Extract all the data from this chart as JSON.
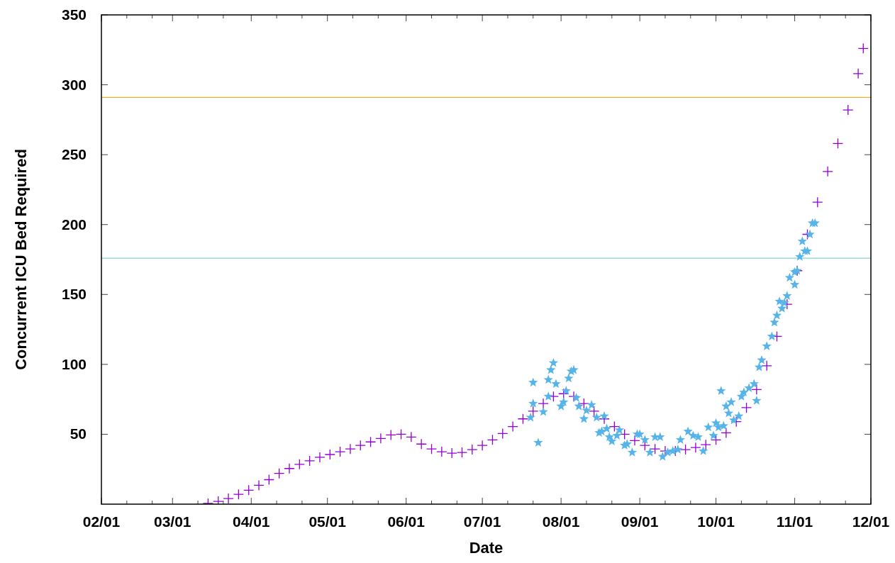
{
  "chart_data": {
    "type": "scatter",
    "xlabel": "Date",
    "ylabel": "Concurrent ICU Bed Required",
    "xlim": [
      "--02-01",
      "--12-01"
    ],
    "xticks": [
      {
        "value": "--02-01",
        "label": "02/01"
      },
      {
        "value": "--02-11",
        "label": null
      },
      {
        "value": "--02-21",
        "label": null
      },
      {
        "value": "--03-01",
        "label": "03/01"
      },
      {
        "value": "--03-11",
        "label": null
      },
      {
        "value": "--03-21",
        "label": null
      },
      {
        "value": "--04-01",
        "label": "04/01"
      },
      {
        "value": "--04-11",
        "label": null
      },
      {
        "value": "--04-21",
        "label": null
      },
      {
        "value": "--05-01",
        "label": "05/01"
      },
      {
        "value": "--05-11",
        "label": null
      },
      {
        "value": "--05-21",
        "label": null
      },
      {
        "value": "--06-01",
        "label": "06/01"
      },
      {
        "value": "--06-11",
        "label": null
      },
      {
        "value": "--06-21",
        "label": null
      },
      {
        "value": "--07-01",
        "label": "07/01"
      },
      {
        "value": "--07-11",
        "label": null
      },
      {
        "value": "--07-21",
        "label": null
      },
      {
        "value": "--08-01",
        "label": "08/01"
      },
      {
        "value": "--08-11",
        "label": null
      },
      {
        "value": "--08-21",
        "label": null
      },
      {
        "value": "--09-01",
        "label": "09/01"
      },
      {
        "value": "--09-11",
        "label": null
      },
      {
        "value": "--09-21",
        "label": null
      },
      {
        "value": "--10-01",
        "label": "10/01"
      },
      {
        "value": "--10-11",
        "label": null
      },
      {
        "value": "--10-21",
        "label": null
      },
      {
        "value": "--11-01",
        "label": "11/01"
      },
      {
        "value": "--11-11",
        "label": null
      },
      {
        "value": "--11-21",
        "label": null
      },
      {
        "value": "--12-01",
        "label": "12/01"
      }
    ],
    "ylim": [
      0,
      350
    ],
    "yticks": [
      50,
      100,
      150,
      200,
      250,
      300,
      350
    ],
    "grid": false,
    "ref_lines": [
      {
        "axis": "y",
        "value": 291,
        "color": "#f0b030"
      },
      {
        "axis": "y",
        "value": 176,
        "color": "#80d8c8"
      }
    ],
    "series": [
      {
        "color": "#9400d3",
        "marker": "cross",
        "x": [
          "--03-15",
          "--03-19",
          "--03-23",
          "--03-27",
          "--03-31",
          "--04-04",
          "--04-08",
          "--04-12",
          "--04-16",
          "--04-20",
          "--04-24",
          "--04-28",
          "--05-02",
          "--05-06",
          "--05-10",
          "--05-14",
          "--05-18",
          "--05-22",
          "--05-26",
          "--05-30",
          "--06-03",
          "--06-07",
          "--06-11",
          "--06-15",
          "--06-19",
          "--06-23",
          "--06-27",
          "--07-01",
          "--07-05",
          "--07-09",
          "--07-13",
          "--07-17",
          "--07-21",
          "--07-25",
          "--07-29",
          "--08-02",
          "--08-06",
          "--08-10",
          "--08-14",
          "--08-18",
          "--08-22",
          "--08-26",
          "--08-30",
          "--09-03",
          "--09-07",
          "--09-11",
          "--09-15",
          "--09-19",
          "--09-23",
          "--09-27",
          "--10-01",
          "--10-05",
          "--10-09",
          "--10-13",
          "--10-17",
          "--10-21",
          "--10-25",
          "--10-29",
          "--11-02",
          "--11-06",
          "--11-10",
          "--11-14",
          "--11-18",
          "--11-22",
          "--11-26",
          "--11-28"
        ],
        "values": [
          0.5,
          2,
          4,
          7,
          10,
          13.5,
          17.5,
          22,
          25.5,
          28.5,
          31,
          33.5,
          35.5,
          37.5,
          39.5,
          42,
          44.5,
          47,
          49.5,
          50,
          48,
          43,
          39.5,
          37.5,
          36.5,
          37,
          39,
          42,
          46,
          50.5,
          55.5,
          61,
          66.5,
          72,
          77,
          79,
          77,
          72,
          66.5,
          61,
          55.5,
          50,
          45.5,
          42,
          39.5,
          38,
          38,
          39,
          40.5,
          42.5,
          46,
          51,
          59,
          69,
          82,
          99,
          120,
          143,
          167,
          193,
          216,
          238,
          258,
          282,
          308,
          326
        ]
      },
      {
        "color": "#56b4e9",
        "marker": "star",
        "x": [
          "--07-20",
          "--07-21",
          "--07-21",
          "--07-23",
          "--07-25",
          "--07-27",
          "--07-27",
          "--07-28",
          "--07-29",
          "--07-30",
          "--08-01",
          "--08-02",
          "--08-03",
          "--08-04",
          "--08-05",
          "--08-06",
          "--08-07",
          "--08-08",
          "--08-10",
          "--08-11",
          "--08-13",
          "--08-15",
          "--08-16",
          "--08-17",
          "--08-18",
          "--08-19",
          "--08-20",
          "--08-21",
          "--08-23",
          "--08-24",
          "--08-26",
          "--08-27",
          "--08-29",
          "--08-31",
          "--09-01",
          "--09-03",
          "--09-05",
          "--09-07",
          "--09-09",
          "--09-10",
          "--09-12",
          "--09-14",
          "--09-16",
          "--09-17",
          "--09-20",
          "--09-22",
          "--09-24",
          "--09-26",
          "--09-28",
          "--09-30",
          "--10-01",
          "--10-02",
          "--10-03",
          "--10-04",
          "--10-05",
          "--10-06",
          "--10-07",
          "--10-08",
          "--10-10",
          "--10-11",
          "--10-12",
          "--10-14",
          "--10-16",
          "--10-17",
          "--10-18",
          "--10-19",
          "--10-21",
          "--10-23",
          "--10-24",
          "--10-25",
          "--10-26",
          "--10-27",
          "--10-28",
          "--10-29",
          "--10-30",
          "--11-01",
          "--11-01",
          "--11-02",
          "--11-03",
          "--11-04",
          "--11-05",
          "--11-06",
          "--11-07",
          "--11-08",
          "--11-09"
        ],
        "values": [
          62,
          87,
          72,
          44,
          66,
          77,
          89,
          96,
          101,
          86,
          70,
          73,
          81,
          90,
          95,
          96,
          76,
          70,
          61,
          67,
          71,
          62,
          51,
          52,
          63,
          54,
          48,
          45,
          49,
          53,
          42,
          43,
          37,
          50,
          50,
          46,
          37,
          48,
          48,
          34,
          37,
          38,
          39,
          46,
          52,
          49,
          48,
          38,
          55,
          49,
          58,
          55,
          81,
          56,
          70,
          65,
          73,
          60,
          63,
          77,
          80,
          83,
          86,
          74,
          98,
          103,
          113,
          120,
          130,
          135,
          145,
          140,
          144,
          149,
          162,
          166,
          157,
          167,
          177,
          188,
          181,
          181,
          193,
          201,
          201
        ]
      }
    ]
  }
}
